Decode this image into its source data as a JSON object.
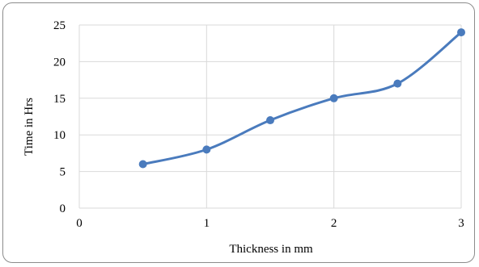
{
  "chart_data": {
    "type": "line",
    "title": "",
    "xlabel": "Thickness in mm",
    "ylabel": "Time in Hrs",
    "xlim": [
      0,
      3
    ],
    "ylim": [
      0,
      25
    ],
    "x_ticks": [
      "0",
      "1",
      "2",
      "3"
    ],
    "y_ticks": [
      "0",
      "5",
      "10",
      "15",
      "20",
      "25"
    ],
    "grid": true,
    "smooth": true,
    "series": [
      {
        "color": "#4a7bbd",
        "x": [
          0.5,
          1.0,
          1.5,
          2.0,
          2.5,
          3.0
        ],
        "y": [
          6,
          8,
          12,
          15,
          17,
          24
        ]
      }
    ]
  }
}
